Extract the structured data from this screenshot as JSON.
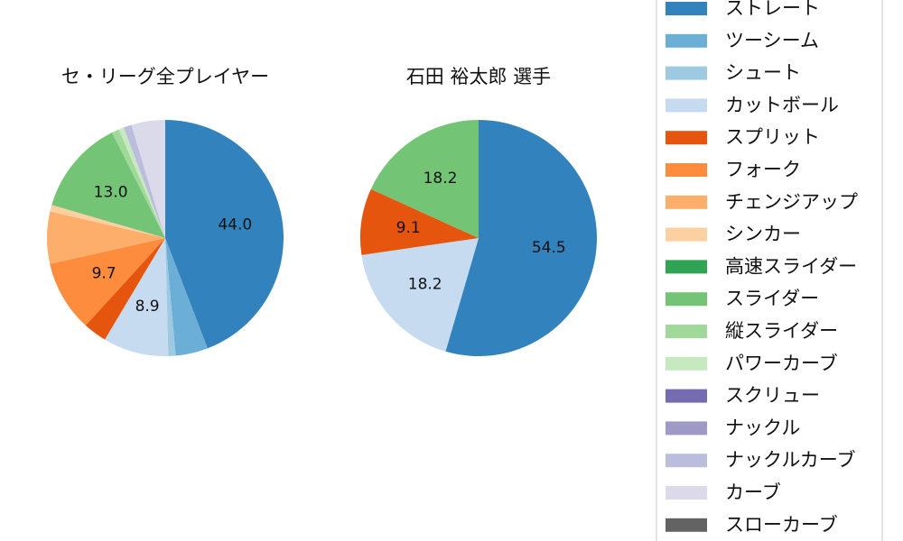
{
  "chart_data": [
    {
      "type": "pie",
      "title": "セ・リーグ全プレイヤー",
      "slices": [
        {
          "label": "ストレート",
          "value": 44.0,
          "color": "#3182bd",
          "shown": "44.0"
        },
        {
          "label": "ツーシーム",
          "value": 4.4,
          "color": "#6baed6",
          "shown": ""
        },
        {
          "label": "シュート",
          "value": 1.0,
          "color": "#9ecae1",
          "shown": ""
        },
        {
          "label": "カットボール",
          "value": 8.9,
          "color": "#c6dbef",
          "shown": "8.9"
        },
        {
          "label": "スプリット",
          "value": 3.2,
          "color": "#e6550d",
          "shown": ""
        },
        {
          "label": "フォーク",
          "value": 9.7,
          "color": "#fd8d3c",
          "shown": "9.7"
        },
        {
          "label": "チェンジアップ",
          "value": 7.1,
          "color": "#fdae6b",
          "shown": ""
        },
        {
          "label": "シンカー",
          "value": 0.9,
          "color": "#fdd0a2",
          "shown": ""
        },
        {
          "label": "高速スライダー",
          "value": 0.0,
          "color": "#31a354",
          "shown": ""
        },
        {
          "label": "スライダー",
          "value": 13.0,
          "color": "#74c476",
          "shown": "13.0"
        },
        {
          "label": "縦スライダー",
          "value": 1.0,
          "color": "#a1d99b",
          "shown": ""
        },
        {
          "label": "パワーカーブ",
          "value": 0.7,
          "color": "#c7e9c0",
          "shown": ""
        },
        {
          "label": "スクリュー",
          "value": 0.0,
          "color": "#756bb1",
          "shown": ""
        },
        {
          "label": "ナックル",
          "value": 0.0,
          "color": "#9e9ac8",
          "shown": ""
        },
        {
          "label": "ナックルカーブ",
          "value": 1.1,
          "color": "#bcbddc",
          "shown": ""
        },
        {
          "label": "カーブ",
          "value": 4.6,
          "color": "#dadaeb",
          "shown": ""
        },
        {
          "label": "スローカーブ",
          "value": 0.0,
          "color": "#636363",
          "shown": ""
        }
      ]
    },
    {
      "type": "pie",
      "title": "石田 裕太郎  選手",
      "slices": [
        {
          "label": "ストレート",
          "value": 54.5,
          "color": "#3182bd",
          "shown": "54.5"
        },
        {
          "label": "カットボール",
          "value": 18.2,
          "color": "#c6dbef",
          "shown": "18.2"
        },
        {
          "label": "スプリット",
          "value": 9.1,
          "color": "#e6550d",
          "shown": "9.1"
        },
        {
          "label": "スライダー",
          "value": 18.2,
          "color": "#74c476",
          "shown": "18.2"
        }
      ]
    }
  ],
  "legend": {
    "placement": "right",
    "items": [
      {
        "label": "ストレート",
        "color": "#3182bd"
      },
      {
        "label": "ツーシーム",
        "color": "#6baed6"
      },
      {
        "label": "シュート",
        "color": "#9ecae1"
      },
      {
        "label": "カットボール",
        "color": "#c6dbef"
      },
      {
        "label": "スプリット",
        "color": "#e6550d"
      },
      {
        "label": "フォーク",
        "color": "#fd8d3c"
      },
      {
        "label": "チェンジアップ",
        "color": "#fdae6b"
      },
      {
        "label": "シンカー",
        "color": "#fdd0a2"
      },
      {
        "label": "高速スライダー",
        "color": "#31a354"
      },
      {
        "label": "スライダー",
        "color": "#74c476"
      },
      {
        "label": "縦スライダー",
        "color": "#a1d99b"
      },
      {
        "label": "パワーカーブ",
        "color": "#c7e9c0"
      },
      {
        "label": "スクリュー",
        "color": "#756bb1"
      },
      {
        "label": "ナックル",
        "color": "#9e9ac8"
      },
      {
        "label": "ナックルカーブ",
        "color": "#bcbddc"
      },
      {
        "label": "カーブ",
        "color": "#dadaeb"
      },
      {
        "label": "スローカーブ",
        "color": "#636363"
      }
    ]
  }
}
